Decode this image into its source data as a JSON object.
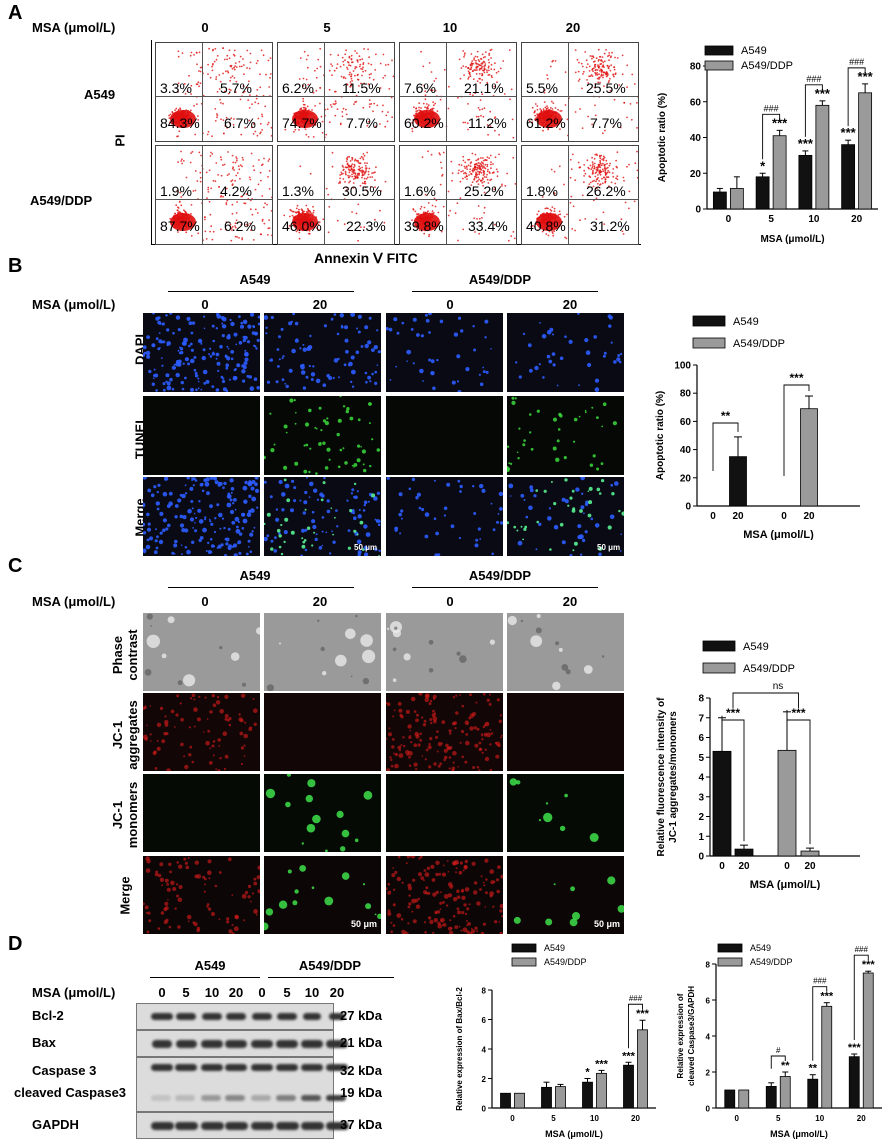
{
  "panels": {
    "a": "A",
    "b": "B",
    "c": "C",
    "d": "D"
  },
  "common": {
    "msa_label": "MSA (μmol/L)",
    "a549": "A549",
    "a549ddp": "A549/DDP"
  },
  "panel_a": {
    "doses": [
      "0",
      "5",
      "10",
      "20"
    ],
    "row_labels": [
      "A549",
      "A549/DDP"
    ],
    "y_axis": "PI",
    "x_axis": "Annexin Ⅴ FITC",
    "flow_values": [
      [
        [
          "3.3%",
          "5.7%",
          "84.3%",
          "6.7%"
        ],
        [
          "6.2%",
          "11.5%",
          "74.7%",
          "7.7%"
        ],
        [
          "7.6%",
          "21.1%",
          "60.2%",
          "11.2%"
        ],
        [
          "5.5%",
          "25.5%",
          "61.2%",
          "7.7%"
        ]
      ],
      [
        [
          "1.9%",
          "4.2%",
          "87.7%",
          "6.2%"
        ],
        [
          "1.3%",
          "30.5%",
          "46.0%",
          "22.3%"
        ],
        [
          "1.6%",
          "25.2%",
          "39.8%",
          "33.4%"
        ],
        [
          "1.8%",
          "26.2%",
          "40.8%",
          "31.2%"
        ]
      ]
    ]
  },
  "panel_b": {
    "doses": [
      "0",
      "20",
      "0",
      "20"
    ],
    "row_labels": [
      "DAPI",
      "TUNEL",
      "Merge"
    ],
    "scale_bar": "50 μm"
  },
  "panel_c": {
    "doses": [
      "0",
      "20",
      "0",
      "20"
    ],
    "row_labels": [
      [
        "Phase",
        "contrast"
      ],
      [
        "JC-1",
        "aggregates"
      ],
      [
        "JC-1",
        "monomers"
      ],
      [
        "Merge"
      ]
    ],
    "scale_bar": "50 μm"
  },
  "panel_d": {
    "lanes": [
      "0",
      "5",
      "10",
      "20",
      "0",
      "5",
      "10",
      "20"
    ],
    "proteins": [
      "Bcl-2",
      "Bax",
      "Caspase 3",
      "cleaved Caspase3",
      "GAPDH"
    ],
    "kda": [
      "27 kDa",
      "21 kDa",
      "32 kDa",
      "19 kDa",
      "37 kDa"
    ]
  },
  "colors": {
    "a549": "#111111",
    "a549ddp": "#9a9a9a",
    "flow_dot": "#e01010"
  },
  "chart_data": [
    {
      "type": "bar",
      "id": "A-apoptosis",
      "categories": [
        "0",
        "5",
        "10",
        "20"
      ],
      "series": [
        {
          "name": "A549",
          "values": [
            9.5,
            18,
            30,
            36
          ],
          "errors": [
            2,
            2,
            2.5,
            2.5
          ]
        },
        {
          "name": "A549/DDP",
          "values": [
            11.5,
            41,
            58,
            65
          ],
          "errors": [
            6.5,
            3,
            2.5,
            5
          ]
        }
      ],
      "ylabel": "Apoptotic ratio (%)",
      "xlabel": "MSA (μmol/L)",
      "ylim": [
        0,
        80
      ],
      "yticks": [
        "0",
        "20",
        "40",
        "60",
        "80"
      ],
      "legend": [
        "A549",
        "A549/DDP"
      ],
      "legend_position": "top-left",
      "annotations": {
        "star": [
          "",
          "*",
          "***",
          "***"
        ],
        "star_ddp": [
          "",
          "***",
          "***",
          "***"
        ],
        "hash": [
          "",
          "###",
          "###",
          "###"
        ]
      }
    },
    {
      "type": "bar",
      "id": "B-tunel",
      "categories": [
        "0",
        "20",
        "0",
        "20"
      ],
      "groups": [
        "A549",
        "A549",
        "A549/DDP",
        "A549/DDP"
      ],
      "values": [
        0,
        35,
        0,
        69
      ],
      "errors": [
        0,
        14,
        0,
        9
      ],
      "ylabel": "Apoptotic ratio (%)",
      "xlabel": "MSA (μmol/L)",
      "ylim": [
        0,
        100
      ],
      "yticks": [
        "0",
        "20",
        "40",
        "60",
        "80",
        "100"
      ],
      "legend": [
        "A549",
        "A549/DDP"
      ],
      "legend_position": "top",
      "annotations": [
        "**",
        "***"
      ]
    },
    {
      "type": "bar",
      "id": "C-jc1",
      "categories": [
        "0",
        "20",
        "0",
        "20"
      ],
      "groups": [
        "A549",
        "A549",
        "A549/DDP",
        "A549/DDP"
      ],
      "values": [
        5.3,
        0.35,
        5.35,
        0.25
      ],
      "errors": [
        1.7,
        0.2,
        1.95,
        0.15
      ],
      "ylabel": "Relative fluorescence intensity of JC-1 aggregates/monomers",
      "xlabel": "MSA (μmol/L)",
      "ylim": [
        0,
        8
      ],
      "yticks": [
        "0",
        "1",
        "2",
        "3",
        "4",
        "5",
        "6",
        "7",
        "8"
      ],
      "legend": [
        "A549",
        "A549/DDP"
      ],
      "legend_position": "top",
      "annotations": [
        "***",
        "***",
        "ns"
      ]
    },
    {
      "type": "bar",
      "id": "D-baxbcl2",
      "categories": [
        "0",
        "5",
        "10",
        "20"
      ],
      "series": [
        {
          "name": "A549",
          "values": [
            1.0,
            1.4,
            1.75,
            2.9
          ],
          "errors": [
            0,
            0.35,
            0.25,
            0.2
          ]
        },
        {
          "name": "A549/DDP",
          "values": [
            1.0,
            1.45,
            2.35,
            5.3
          ],
          "errors": [
            0,
            0.15,
            0.2,
            0.65
          ]
        }
      ],
      "ylabel": "Relative expression of Bax/Bcl-2",
      "xlabel": "MSA (μmol/L)",
      "ylim": [
        0,
        8
      ],
      "yticks": [
        "0",
        "2",
        "4",
        "6",
        "8"
      ],
      "legend": [
        "A549",
        "A549/DDP"
      ],
      "legend_position": "top",
      "annotations": {
        "star": [
          "",
          "",
          "*",
          "***"
        ],
        "star_ddp": [
          "",
          "",
          "***",
          "***"
        ],
        "hash": [
          "",
          "",
          "",
          "###"
        ]
      }
    },
    {
      "type": "bar",
      "id": "D-caspase",
      "categories": [
        "0",
        "5",
        "10",
        "20"
      ],
      "series": [
        {
          "name": "A549",
          "values": [
            1.0,
            1.2,
            1.6,
            2.85
          ],
          "errors": [
            0,
            0.2,
            0.25,
            0.15
          ]
        },
        {
          "name": "A549/DDP",
          "values": [
            1.0,
            1.75,
            5.65,
            7.5
          ],
          "errors": [
            0,
            0.25,
            0.2,
            0.1
          ]
        }
      ],
      "ylabel": "Relative expression of cleaved Caspase3/GAPDH",
      "xlabel": "MSA (μmol/L)",
      "ylim": [
        0,
        8
      ],
      "yticks": [
        "0",
        "2",
        "4",
        "6",
        "8"
      ],
      "legend": [
        "A549",
        "A549/DDP"
      ],
      "legend_position": "top",
      "annotations": {
        "star": [
          "",
          "",
          "**",
          "***"
        ],
        "star_ddp": [
          "",
          "**",
          "***",
          "***"
        ],
        "hash": [
          "",
          "#",
          "###",
          "###"
        ]
      }
    }
  ]
}
